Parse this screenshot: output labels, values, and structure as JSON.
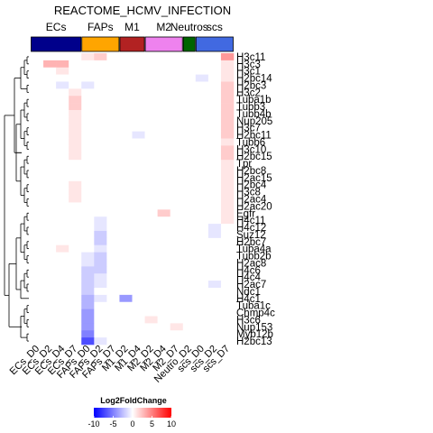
{
  "chart_data": {
    "type": "heatmap",
    "title": "REACTOME_HCMV_INFECTION",
    "groups": [
      {
        "name": "ECs",
        "color": "#00008b",
        "columns": 4
      },
      {
        "name": "FAPs",
        "color": "#ffa500",
        "columns": 3
      },
      {
        "name": "M1",
        "color": "#b22222",
        "columns": 2
      },
      {
        "name": "M2",
        "color": "#ee82ee",
        "columns": 3
      },
      {
        "name": "Neutros",
        "color": "#006400",
        "columns": 1
      },
      {
        "name": "scs",
        "color": "#4169e1",
        "columns": 3
      }
    ],
    "columns": [
      "ECs_D0",
      "ECs_D2",
      "ECs_D4",
      "ECs_D7",
      "FAPs_D0",
      "FAPs_D2",
      "FAPs_D7",
      "M1_D2",
      "M1_D4",
      "M2_D2",
      "M2_D4",
      "M2_D7",
      "Neutro_D2",
      "scs_D0",
      "scs_D2",
      "scs_D7"
    ],
    "rows": [
      "H3c11",
      "H3c3",
      "H3c1",
      "H2bc14",
      "H2bc3",
      "H3c2",
      "Tuba1b",
      "Tubb3",
      "Tubb4b",
      "Nup205",
      "H3c7",
      "H2bc11",
      "Tubb6",
      "H3c10",
      "H2bc15",
      "Tpr",
      "H2bc8",
      "H2ac15",
      "H2bc4",
      "H3c8",
      "H2ac4",
      "H2ac20",
      "Egfr",
      "H4c11",
      "H4c12",
      "Suz12",
      "H2bc7",
      "Tuba4a",
      "Tubb2b",
      "H2ac8",
      "H4c6",
      "H4c4",
      "H2ac7",
      "Ndc1",
      "H4c1",
      "Tuba1c",
      "Chmp4c",
      "H3c6",
      "Nup153",
      "Myb12b",
      "H2bc13"
    ],
    "values": [
      [
        0,
        0,
        0,
        0,
        1,
        2,
        0,
        0,
        0,
        0,
        0,
        0,
        0,
        0,
        0,
        4
      ],
      [
        0,
        3,
        3,
        0,
        0,
        0,
        0,
        0,
        0,
        0,
        0,
        0,
        0,
        0,
        0,
        1
      ],
      [
        0,
        0,
        1,
        0,
        0,
        0,
        0,
        0,
        0,
        0,
        0,
        0,
        0,
        0,
        0,
        1
      ],
      [
        0,
        0,
        0,
        0,
        0,
        0,
        0,
        0,
        0,
        0,
        0,
        0,
        0,
        -1,
        0,
        1
      ],
      [
        0,
        0,
        -1,
        0,
        -1,
        0,
        0,
        0,
        0,
        0,
        0,
        0,
        0,
        0,
        0,
        2
      ],
      [
        0,
        0,
        0,
        1,
        0,
        0,
        0,
        0,
        0,
        0,
        0,
        0,
        0,
        0,
        0,
        2
      ],
      [
        0,
        0,
        0,
        2,
        0,
        0,
        0,
        0,
        0,
        0,
        0,
        0,
        0,
        0,
        0,
        2
      ],
      [
        0,
        0,
        0,
        2,
        0,
        0,
        0,
        0,
        0,
        0,
        0,
        0,
        0,
        0,
        0,
        2
      ],
      [
        0,
        0,
        0,
        1,
        0,
        0,
        0,
        0,
        0,
        0,
        0,
        0,
        0,
        0,
        0,
        2
      ],
      [
        0,
        0,
        0,
        1,
        0,
        0,
        0,
        0,
        0,
        0,
        0,
        0,
        0,
        0,
        0,
        2
      ],
      [
        0,
        0,
        0,
        1,
        0,
        0,
        0,
        0,
        0,
        0,
        0,
        0,
        0,
        0,
        0,
        2
      ],
      [
        0,
        0,
        0,
        1,
        0,
        0,
        0,
        0,
        -1,
        0,
        0,
        0,
        0,
        0,
        0,
        2
      ],
      [
        0,
        0,
        0,
        1,
        0,
        0,
        0,
        0,
        0,
        0,
        0,
        0,
        0,
        0,
        0,
        1
      ],
      [
        0,
        0,
        0,
        1,
        0,
        0,
        0,
        0,
        0,
        0,
        0,
        0,
        0,
        0,
        0,
        2
      ],
      [
        0,
        0,
        0,
        1,
        0,
        0,
        0,
        0,
        0,
        0,
        0,
        0,
        0,
        0,
        0,
        2
      ],
      [
        0,
        0,
        0,
        0,
        0,
        0,
        0,
        0,
        0,
        0,
        0,
        0,
        0,
        0,
        0,
        1
      ],
      [
        0,
        0,
        0,
        0,
        0,
        0,
        0,
        0,
        0,
        0,
        0,
        0,
        0,
        0,
        0,
        1
      ],
      [
        0,
        0,
        0,
        0,
        0,
        0,
        0,
        0,
        0,
        0,
        0,
        0,
        0,
        0,
        0,
        1
      ],
      [
        0,
        0,
        0,
        1,
        0,
        0,
        0,
        0,
        0,
        0,
        0,
        0,
        0,
        0,
        0,
        1
      ],
      [
        0,
        0,
        0,
        1,
        0,
        0,
        0,
        0,
        0,
        0,
        0,
        0,
        0,
        0,
        0,
        1
      ],
      [
        0,
        0,
        0,
        1,
        0,
        0,
        0,
        0,
        0,
        0,
        0,
        0,
        0,
        0,
        0,
        1
      ],
      [
        0,
        0,
        0,
        0,
        0,
        0,
        0,
        0,
        0,
        0,
        0,
        0,
        0,
        0,
        0,
        1
      ],
      [
        0,
        0,
        0,
        0,
        0,
        0,
        0,
        0,
        0,
        0,
        2,
        0,
        0,
        0,
        0,
        1
      ],
      [
        0,
        0,
        0,
        0,
        0,
        -1,
        0,
        0,
        0,
        0,
        0,
        0,
        0,
        0,
        0,
        1
      ],
      [
        0,
        0,
        0,
        0,
        0,
        -1,
        0,
        0,
        0,
        0,
        0,
        0,
        0,
        0,
        -1,
        0
      ],
      [
        0,
        0,
        0,
        0,
        0,
        -2,
        0,
        0,
        0,
        0,
        0,
        0,
        0,
        0,
        -1,
        0
      ],
      [
        0,
        0,
        0,
        0,
        0,
        -2,
        0,
        0,
        0,
        0,
        0,
        0,
        0,
        0,
        0,
        0
      ],
      [
        0,
        0,
        1,
        0,
        0,
        -1,
        0,
        0,
        0,
        0,
        0,
        0,
        0,
        0,
        0,
        0
      ],
      [
        0,
        0,
        0,
        0,
        -1,
        -2,
        0,
        0,
        0,
        0,
        0,
        0,
        0,
        0,
        0,
        0
      ],
      [
        0,
        0,
        0,
        0,
        -1,
        -2,
        0,
        0,
        0,
        0,
        0,
        0,
        0,
        0,
        0,
        0
      ],
      [
        0,
        0,
        0,
        0,
        -2,
        -2,
        0,
        0,
        0,
        0,
        0,
        0,
        0,
        0,
        0,
        0
      ],
      [
        0,
        0,
        0,
        0,
        -2,
        -1,
        0,
        0,
        0,
        0,
        0,
        0,
        0,
        0,
        0,
        0
      ],
      [
        0,
        0,
        0,
        0,
        -2,
        -1,
        0,
        0,
        0,
        0,
        0,
        0,
        0,
        0,
        -1,
        0
      ],
      [
        0,
        0,
        0,
        0,
        -2,
        0,
        0,
        0,
        0,
        0,
        0,
        0,
        0,
        0,
        0,
        0
      ],
      [
        0,
        0,
        0,
        0,
        -3,
        -1,
        0,
        -4,
        0,
        0,
        0,
        0,
        0,
        0,
        0,
        0
      ],
      [
        0,
        0,
        0,
        0,
        -3,
        0,
        0,
        0,
        0,
        0,
        0,
        0,
        0,
        0,
        0,
        0
      ],
      [
        0,
        0,
        0,
        0,
        -4,
        0,
        0,
        0,
        0,
        0,
        0,
        0,
        0,
        0,
        0,
        0
      ],
      [
        0,
        0,
        0,
        0,
        -4,
        0,
        0,
        0,
        0,
        1,
        0,
        0,
        0,
        0,
        0,
        0
      ],
      [
        0,
        0,
        0,
        0,
        -4,
        0,
        0,
        0,
        0,
        0,
        0,
        1,
        0,
        0,
        0,
        0
      ],
      [
        0,
        0,
        0,
        0,
        -5,
        0,
        0,
        0,
        0,
        0,
        0,
        0,
        0,
        0,
        0,
        0
      ],
      [
        0,
        0,
        0,
        0,
        -7,
        -1,
        0,
        0,
        0,
        0,
        0,
        0,
        0,
        0,
        0,
        0
      ]
    ],
    "color_scale": {
      "title": "Log2FoldChange",
      "min": -10,
      "max": 10,
      "ticks": [
        -10,
        -5,
        0,
        5,
        10
      ],
      "low_color": "#0000ff",
      "mid_color": "#ffffff",
      "high_color": "#ff0000"
    }
  }
}
